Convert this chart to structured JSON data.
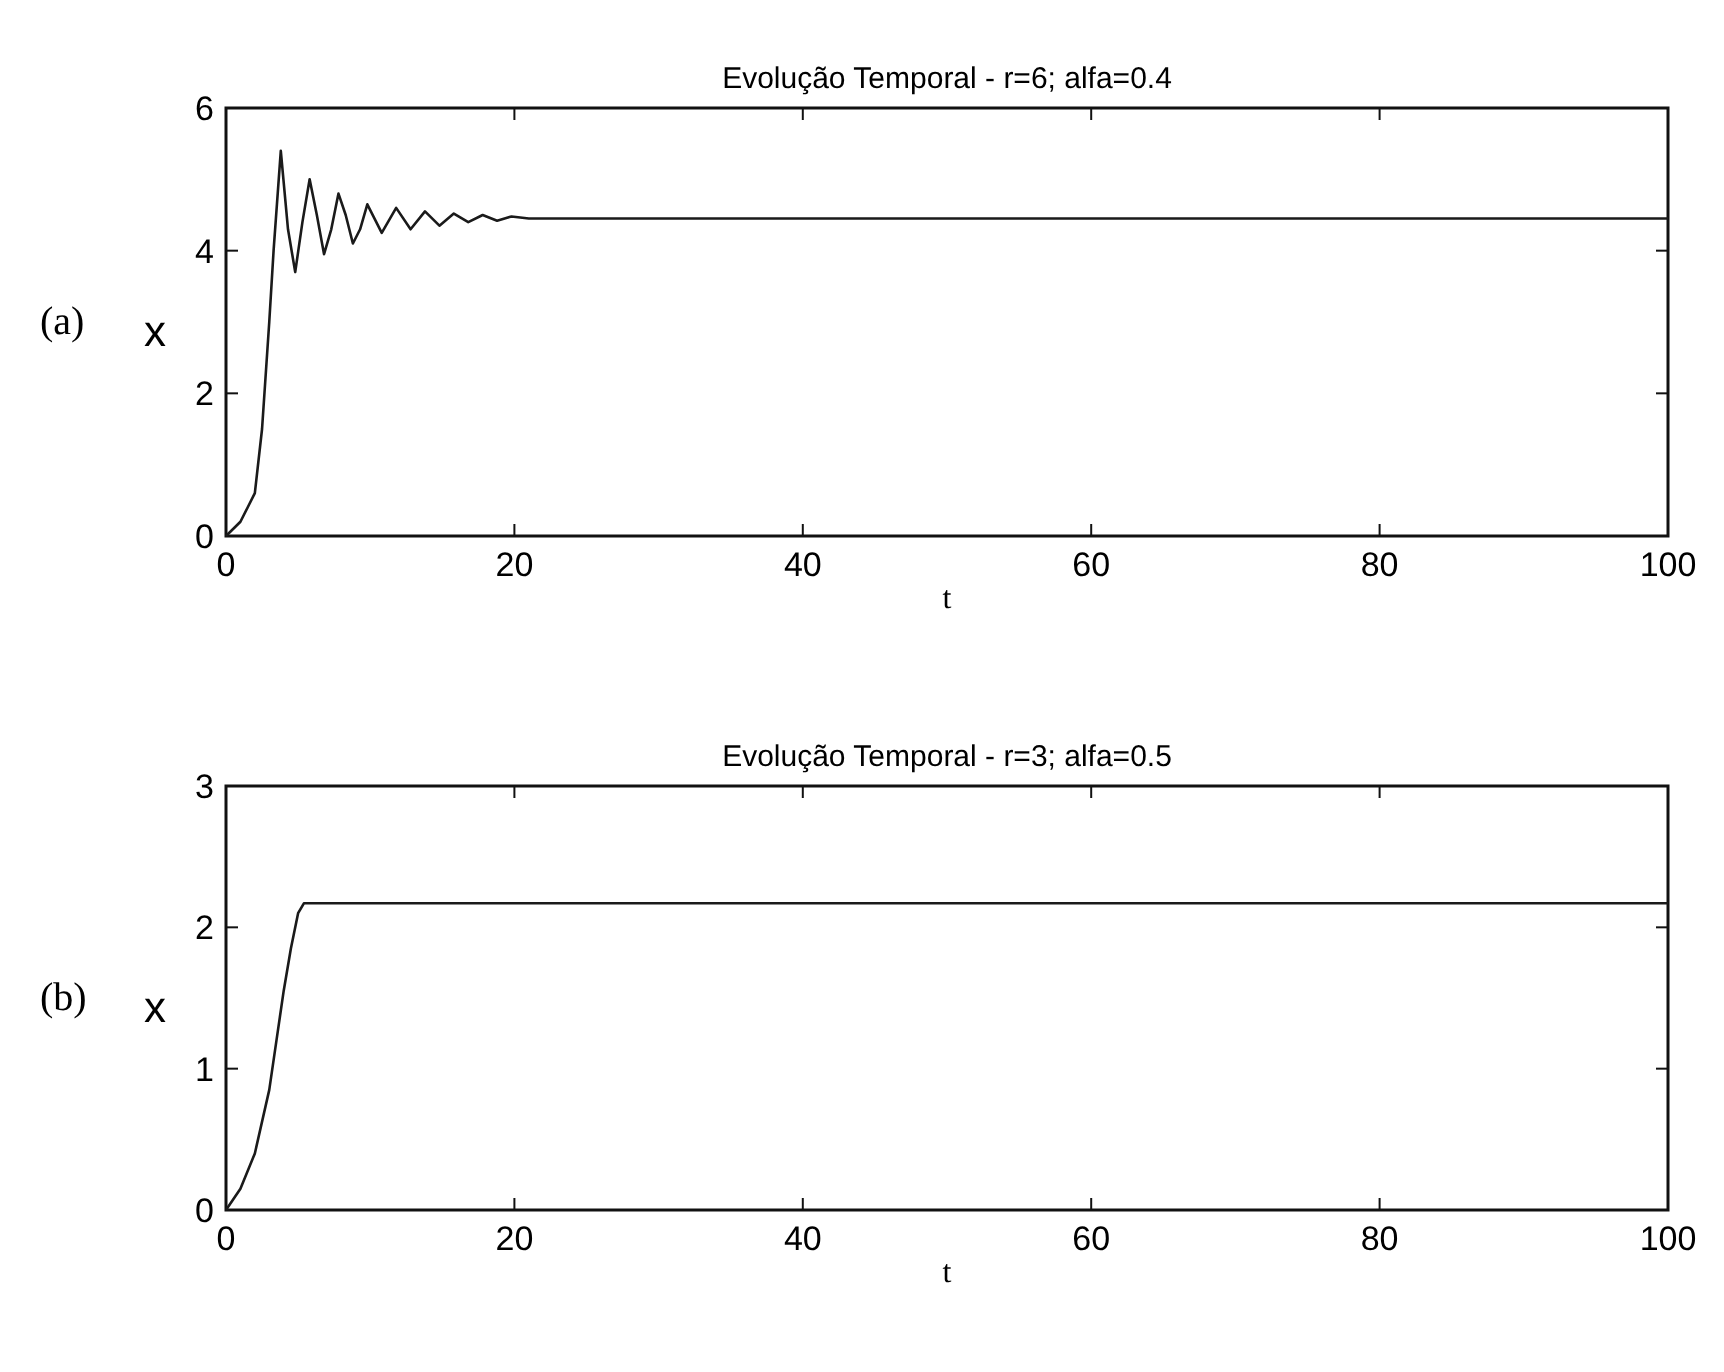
{
  "chart_data": [
    {
      "type": "line",
      "title": "Evolução Temporal - r=6; alfa=0.4",
      "xlabel": "t",
      "ylabel": "x",
      "annotations": [
        "(a)"
      ],
      "xlim": [
        0,
        100
      ],
      "ylim": [
        0,
        6
      ],
      "xticks": [
        0,
        20,
        40,
        60,
        80,
        100
      ],
      "yticks": [
        0,
        2,
        4,
        6
      ],
      "grid": false,
      "series": [
        {
          "color": "#1a1a1a",
          "x": [
            0,
            1,
            1.5,
            2,
            2.5,
            3,
            3.3,
            3.8,
            4.3,
            4.8,
            5.3,
            5.8,
            6.3,
            6.8,
            7.3,
            7.8,
            8.3,
            8.8,
            9.3,
            9.8,
            10.8,
            11.8,
            12.8,
            13.8,
            14.8,
            15.8,
            16.8,
            17.8,
            18.8,
            19.8,
            21,
            100
          ],
          "values": [
            0,
            0.2,
            0.4,
            0.6,
            1.5,
            3.0,
            4.0,
            5.4,
            4.3,
            3.7,
            4.4,
            5.0,
            4.5,
            3.95,
            4.3,
            4.8,
            4.5,
            4.1,
            4.3,
            4.65,
            4.25,
            4.6,
            4.3,
            4.55,
            4.35,
            4.52,
            4.4,
            4.5,
            4.42,
            4.48,
            4.45,
            4.45
          ]
        }
      ]
    },
    {
      "type": "line",
      "title": "Evolução Temporal - r=3; alfa=0.5",
      "xlabel": "t",
      "ylabel": "x",
      "annotations": [
        "(b)"
      ],
      "xlim": [
        0,
        100
      ],
      "ylim": [
        0,
        3
      ],
      "xticks": [
        0,
        20,
        40,
        60,
        80,
        100
      ],
      "yticks": [
        0,
        1,
        2,
        3
      ],
      "grid": false,
      "series": [
        {
          "color": "#1a1a1a",
          "x": [
            0,
            1,
            2,
            3,
            3.5,
            4,
            4.5,
            5,
            5.4,
            6,
            100
          ],
          "values": [
            0,
            0.15,
            0.4,
            0.85,
            1.2,
            1.55,
            1.85,
            2.1,
            2.17,
            2.17,
            2.17
          ]
        }
      ]
    }
  ]
}
